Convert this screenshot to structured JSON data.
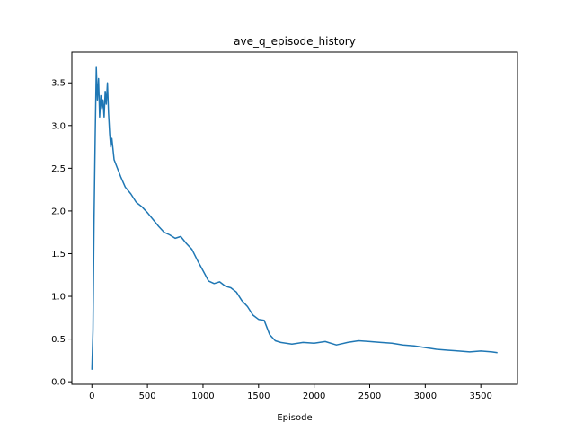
{
  "chart_data": {
    "type": "line",
    "title": "ave_q_episode_history",
    "xlabel": "Episode",
    "ylabel": "",
    "xlim": [
      -180,
      3830
    ],
    "ylim": [
      -0.03,
      3.86
    ],
    "xticks": [
      0,
      500,
      1000,
      1500,
      2000,
      2500,
      3000,
      3500
    ],
    "xtick_labels": [
      "0",
      "500",
      "1000",
      "1500",
      "2000",
      "2500",
      "3000",
      "3500"
    ],
    "yticks": [
      0.0,
      0.5,
      1.0,
      1.5,
      2.0,
      2.5,
      3.0,
      3.5
    ],
    "ytick_labels": [
      "0.0",
      "0.5",
      "1.0",
      "1.5",
      "2.0",
      "2.5",
      "3.0",
      "3.5"
    ],
    "grid": false,
    "legend": "none",
    "series": [
      {
        "color": "#1f77b4",
        "x": [
          0,
          10,
          20,
          30,
          40,
          50,
          60,
          70,
          80,
          90,
          100,
          110,
          120,
          130,
          140,
          150,
          160,
          170,
          180,
          200,
          230,
          260,
          300,
          350,
          400,
          450,
          500,
          550,
          600,
          650,
          700,
          750,
          800,
          850,
          900,
          950,
          1000,
          1050,
          1100,
          1150,
          1200,
          1250,
          1300,
          1350,
          1400,
          1450,
          1500,
          1550,
          1600,
          1650,
          1700,
          1800,
          1900,
          2000,
          2100,
          2200,
          2300,
          2400,
          2500,
          2600,
          2700,
          2800,
          2900,
          3000,
          3100,
          3200,
          3300,
          3400,
          3500,
          3600,
          3650
        ],
        "y": [
          0.14,
          0.6,
          1.9,
          2.9,
          3.68,
          3.3,
          3.55,
          3.1,
          3.35,
          3.2,
          3.3,
          3.1,
          3.4,
          3.25,
          3.5,
          3.15,
          2.9,
          2.75,
          2.85,
          2.6,
          2.5,
          2.4,
          2.28,
          2.2,
          2.1,
          2.05,
          1.98,
          1.9,
          1.82,
          1.75,
          1.72,
          1.68,
          1.7,
          1.62,
          1.55,
          1.42,
          1.3,
          1.18,
          1.15,
          1.17,
          1.12,
          1.1,
          1.05,
          0.95,
          0.88,
          0.78,
          0.73,
          0.72,
          0.55,
          0.48,
          0.46,
          0.44,
          0.46,
          0.45,
          0.47,
          0.43,
          0.46,
          0.48,
          0.47,
          0.46,
          0.45,
          0.43,
          0.42,
          0.4,
          0.38,
          0.37,
          0.36,
          0.35,
          0.36,
          0.35,
          0.34
        ]
      }
    ]
  }
}
